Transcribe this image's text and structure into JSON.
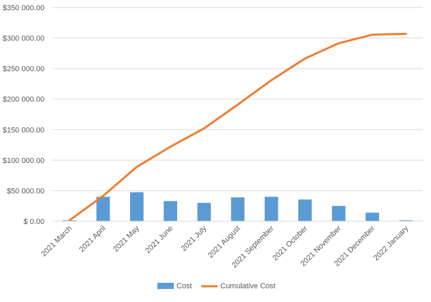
{
  "chart_data": {
    "type": "bar+line",
    "categories": [
      "2021 March",
      "2021 April",
      "2021 May",
      "2021 June",
      "2021 July",
      "2021 August",
      "2021 September",
      "2021 October",
      "2021 November",
      "2021 December",
      "2022 January"
    ],
    "series": [
      {
        "name": "Cost",
        "type": "bar",
        "color": "#5B9BD5",
        "values": [
          1500,
          40000,
          47500,
          33000,
          30000,
          39000,
          40000,
          35500,
          25000,
          14000,
          1500
        ]
      },
      {
        "name": "Cumulative Cost",
        "type": "line",
        "color": "#ED7D31",
        "values": [
          1500,
          41500,
          89000,
          122000,
          152000,
          191000,
          231000,
          266500,
          291500,
          305500,
          307000
        ]
      }
    ],
    "ylim": [
      0,
      350000
    ],
    "ytick_labels": [
      "$ 0.00",
      "$50 000.00",
      "$100 000.00",
      "$150 000.00",
      "$200 000.00",
      "$250 000.00",
      "$300 000.00",
      "$350 000.00"
    ],
    "grid": true,
    "legend_position": "bottom"
  },
  "legend": {
    "cost_label": "Cost",
    "cumulative_label": "Cumulative Cost"
  }
}
